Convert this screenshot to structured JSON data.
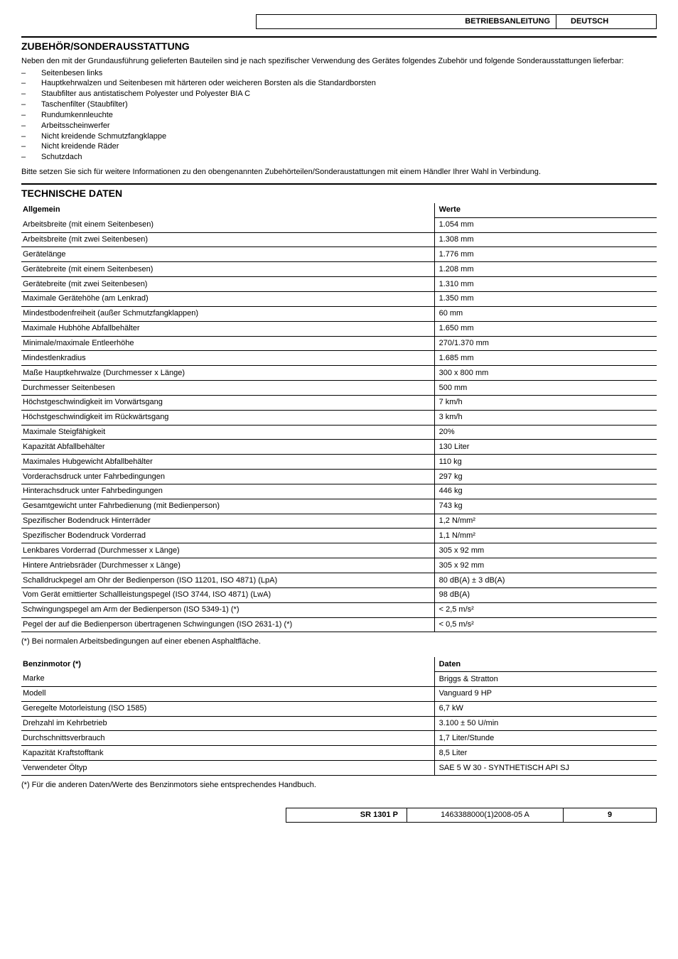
{
  "header": {
    "doc_type": "BETRIEBSANLEITUNG",
    "language": "DEUTSCH"
  },
  "accessories": {
    "title": "ZUBEHÖR/SONDERAUSSTATTUNG",
    "intro": "Neben den mit der Grundausführung gelieferten Bauteilen sind je nach spezifischer Verwendung des Gerätes folgendes Zubehör und folgende Sonderausstattungen lieferbar:",
    "items": [
      "Seitenbesen links",
      "Hauptkehrwalzen und Seitenbesen mit härteren oder weicheren Borsten als die Standardborsten",
      "Staubfilter aus antistatischem Polyester und Polyester BIA C",
      "Taschenfilter (Staubfilter)",
      "Rundumkennleuchte",
      "Arbeitsscheinwerfer",
      "Nicht kreidende Schmutzfangklappe",
      "Nicht kreidende Räder",
      "Schutzdach"
    ],
    "outro": "Bitte setzen Sie sich für weitere Informationen zu den obengenannten Zubehörteilen/Sonderaustattungen mit einem Händler Ihrer Wahl in Verbindung."
  },
  "tech": {
    "title": "TECHNISCHE DATEN",
    "general_header_left": "Allgemein",
    "general_header_right": "Werte",
    "general_rows": [
      {
        "l": "Arbeitsbreite (mit einem Seitenbesen)",
        "r": "1.054 mm"
      },
      {
        "l": "Arbeitsbreite (mit zwei Seitenbesen)",
        "r": "1.308 mm"
      },
      {
        "l": "Gerätelänge",
        "r": "1.776 mm"
      },
      {
        "l": "Gerätebreite (mit einem Seitenbesen)",
        "r": "1.208 mm"
      },
      {
        "l": "Gerätebreite (mit zwei Seitenbesen)",
        "r": "1.310 mm"
      },
      {
        "l": "Maximale Gerätehöhe (am Lenkrad)",
        "r": "1.350 mm"
      },
      {
        "l": "Mindestbodenfreiheit (außer Schmutzfangklappen)",
        "r": "60 mm"
      },
      {
        "l": "Maximale Hubhöhe Abfallbehälter",
        "r": "1.650 mm"
      },
      {
        "l": "Minimale/maximale Entleerhöhe",
        "r": "270/1.370 mm"
      },
      {
        "l": "Mindestlenkradius",
        "r": "1.685 mm"
      },
      {
        "l": "Maße Hauptkehrwalze (Durchmesser x Länge)",
        "r": "300 x 800 mm"
      },
      {
        "l": "Durchmesser Seitenbesen",
        "r": "500 mm"
      },
      {
        "l": "Höchstgeschwindigkeit im Vorwärtsgang",
        "r": "7 km/h"
      },
      {
        "l": "Höchstgeschwindigkeit im Rückwärtsgang",
        "r": "3 km/h"
      },
      {
        "l": "Maximale Steigfähigkeit",
        "r": "20%"
      },
      {
        "l": "Kapazität Abfallbehälter",
        "r": "130 Liter"
      },
      {
        "l": "Maximales Hubgewicht Abfallbehälter",
        "r": "110 kg"
      },
      {
        "l": "Vorderachsdruck unter Fahrbedingungen",
        "r": "297 kg"
      },
      {
        "l": "Hinterachsdruck unter Fahrbedingungen",
        "r": "446 kg"
      },
      {
        "l": "Gesamtgewicht unter Fahrbedienung (mit Bedienperson)",
        "r": "743 kg"
      },
      {
        "l": "Spezifischer Bodendruck Hinterräder",
        "r": "1,2 N/mm²"
      },
      {
        "l": "Spezifischer Bodendruck Vorderrad",
        "r": "1,1 N/mm²"
      },
      {
        "l": "Lenkbares Vorderrad (Durchmesser x Länge)",
        "r": "305 x 92 mm"
      },
      {
        "l": "Hintere Antriebsräder (Durchmesser x Länge)",
        "r": "305 x 92 mm"
      },
      {
        "l": "Schalldruckpegel am Ohr der Bedienperson (ISO 11201, ISO 4871) (LpA)",
        "r": "80 dB(A) ± 3 dB(A)"
      },
      {
        "l": "Vom Gerät emittierter Schallleistungspegel (ISO 3744, ISO 4871) (LwA)",
        "r": "98 dB(A)"
      },
      {
        "l": "Schwingungspegel am Arm der Bedienperson (ISO 5349-1) (*)",
        "r": "< 2,5 m/s²"
      },
      {
        "l": "Pegel der auf die Bedienperson übertragenen Schwingungen (ISO 2631-1) (*)",
        "r": "< 0,5 m/s²"
      }
    ],
    "general_footnote": "(*)   Bei normalen Arbeitsbedingungen auf einer ebenen Asphaltfläche.",
    "engine_header_left": "Benzinmotor (*)",
    "engine_header_right": "Daten",
    "engine_rows": [
      {
        "l": "Marke",
        "r": "Briggs & Stratton"
      },
      {
        "l": "Modell",
        "r": "Vanguard 9 HP"
      },
      {
        "l": "Geregelte Motorleistung (ISO 1585)",
        "r": "6,7 kW"
      },
      {
        "l": "Drehzahl im Kehrbetrieb",
        "r": "3.100 ± 50 U/min"
      },
      {
        "l": "Durchschnittsverbrauch",
        "r": "1,7 Liter/Stunde"
      },
      {
        "l": "Kapazität Kraftstofftank",
        "r": "8,5 Liter"
      },
      {
        "l": "Verwendeter Öltyp",
        "r": "SAE 5 W 30 - SYNTHETISCH API SJ"
      }
    ],
    "engine_footnote": "(*)   Für die anderen Daten/Werte des Benzinmotors siehe entsprechendes Handbuch."
  },
  "footer": {
    "model": "SR 1301 P",
    "doc_id": "1463388000(1)2008-05 A",
    "page": "9"
  }
}
